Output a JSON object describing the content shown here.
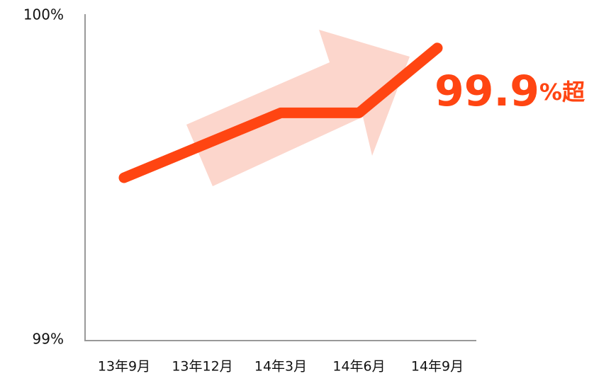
{
  "chart_data": {
    "type": "line",
    "categories": [
      "13年9月",
      "13年12月",
      "14年3月",
      "14年6月",
      "14年9月"
    ],
    "series": [
      {
        "color": "#ff4512",
        "values": [
          99.5,
          99.6,
          99.7,
          99.7,
          99.9
        ]
      }
    ],
    "ylim": [
      99,
      100
    ],
    "yticks": [
      {
        "value": 99,
        "label": "99%"
      },
      {
        "value": 100,
        "label": "100%"
      }
    ],
    "annotation": [
      "99.9",
      "%超"
    ]
  }
}
